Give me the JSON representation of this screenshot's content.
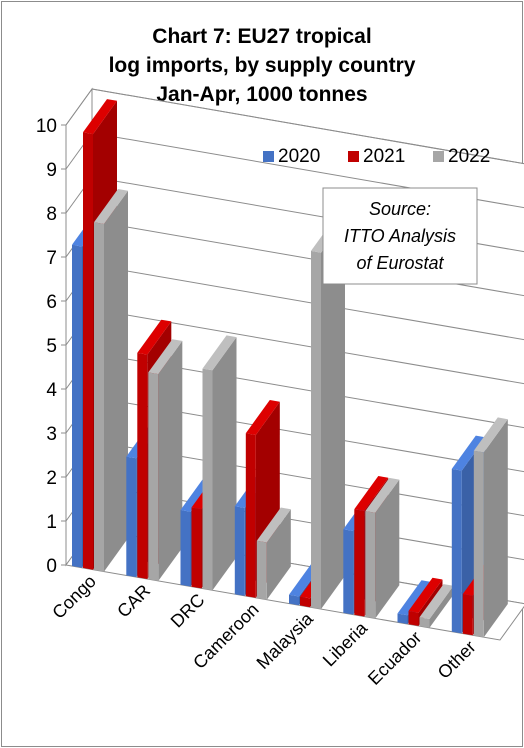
{
  "chart_data": {
    "type": "bar",
    "title_lines": [
      "Chart 7: EU27 tropical",
      "log imports, by supply country",
      "Jan-Apr, 1000 tonnes"
    ],
    "xlabel": "",
    "ylabel": "",
    "categories": [
      "Congo",
      "CAR",
      "DRC",
      "Cameroon",
      "Malaysia",
      "Liberia",
      "Ecuador",
      "Other"
    ],
    "series": [
      {
        "name": "2020",
        "color": "#4472C4",
        "values": [
          7.3,
          2.7,
          1.7,
          2.0,
          0.2,
          1.9,
          0.2,
          3.7
        ]
      },
      {
        "name": "2021",
        "color": "#C00000",
        "values": [
          9.9,
          5.1,
          1.8,
          3.7,
          0.2,
          2.4,
          0.3,
          0.9
        ]
      },
      {
        "name": "2022",
        "color": "#A6A6A6",
        "values": [
          7.9,
          4.7,
          5.0,
          1.3,
          8.1,
          2.4,
          0.2,
          4.2
        ]
      }
    ],
    "ylim": [
      0,
      10
    ],
    "yticks": [
      "0",
      "1",
      "2",
      "3",
      "4",
      "5",
      "6",
      "7",
      "8",
      "9",
      "10"
    ],
    "grid": true,
    "legend": "top-right",
    "annotation_lines": [
      "Source:",
      "ITTO  Analysis",
      "of Eurostat"
    ]
  }
}
